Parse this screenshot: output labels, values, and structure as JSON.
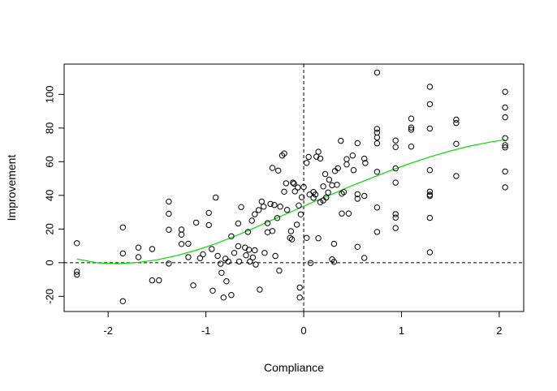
{
  "chart_data": {
    "type": "scatter",
    "xlabel": "Compliance",
    "ylabel": "Improvement",
    "xlim": [
      -2.45,
      2.25
    ],
    "ylim": [
      -29,
      118
    ],
    "x_ticks": [
      -2,
      -1,
      0,
      1,
      2
    ],
    "x_tick_labels": [
      "-2",
      "-1",
      "0",
      "1",
      "2"
    ],
    "y_ticks": [
      -20,
      0,
      20,
      40,
      60,
      80,
      100
    ],
    "y_tick_labels": [
      "-20",
      "0",
      "20",
      "40",
      "60",
      "80",
      "100"
    ],
    "reference_lines": {
      "vertical_x": 0,
      "horizontal_y": 0,
      "style": "dashed"
    },
    "grid": false,
    "colors": {
      "points": "#000000",
      "curve": "#00dd00",
      "reference": "#000000"
    },
    "points": [
      [
        -2.32,
        11.6
      ],
      [
        -2.32,
        -5.4
      ],
      [
        -2.32,
        -7.1
      ],
      [
        -1.85,
        21.0
      ],
      [
        -1.85,
        5.5
      ],
      [
        -1.85,
        -22.9
      ],
      [
        -1.69,
        9.0
      ],
      [
        -1.69,
        3.3
      ],
      [
        -1.55,
        8.1
      ],
      [
        -1.55,
        -10.5
      ],
      [
        -1.48,
        -10.5
      ],
      [
        -1.38,
        36.3
      ],
      [
        -1.38,
        29.1
      ],
      [
        -1.38,
        19.6
      ],
      [
        -1.38,
        -0.5
      ],
      [
        -1.25,
        19.7
      ],
      [
        -1.25,
        16.7
      ],
      [
        -1.25,
        11.1
      ],
      [
        -1.18,
        11.3
      ],
      [
        -1.18,
        3.3
      ],
      [
        -1.13,
        -13.5
      ],
      [
        -1.1,
        23.8
      ],
      [
        -1.06,
        2.7
      ],
      [
        -1.03,
        5.0
      ],
      [
        -0.97,
        29.6
      ],
      [
        -0.97,
        22.4
      ],
      [
        -0.94,
        8.1
      ],
      [
        -0.93,
        -16.6
      ],
      [
        -0.9,
        38.7
      ],
      [
        -0.88,
        4.0
      ],
      [
        -0.85,
        -0.6
      ],
      [
        -0.84,
        -6.0
      ],
      [
        -0.82,
        -20.7
      ],
      [
        -0.8,
        2.4
      ],
      [
        -0.79,
        -11.0
      ],
      [
        -0.77,
        0.7
      ],
      [
        -0.74,
        -19.2
      ],
      [
        -0.74,
        15.7
      ],
      [
        -0.71,
        5.8
      ],
      [
        -0.67,
        23.3
      ],
      [
        -0.67,
        9.8
      ],
      [
        -0.66,
        0.7
      ],
      [
        -0.64,
        33.1
      ],
      [
        -0.6,
        9.0
      ],
      [
        -0.59,
        4.4
      ],
      [
        -0.57,
        18.3
      ],
      [
        -0.56,
        7.7
      ],
      [
        -0.55,
        0.7
      ],
      [
        -0.53,
        25.0
      ],
      [
        -0.52,
        3.1
      ],
      [
        -0.5,
        28.8
      ],
      [
        -0.5,
        7.4
      ],
      [
        -0.49,
        -1.1
      ],
      [
        -0.46,
        31.3
      ],
      [
        -0.45,
        -16.0
      ],
      [
        -0.43,
        36.3
      ],
      [
        -0.41,
        33.3
      ],
      [
        -0.4,
        5.8
      ],
      [
        -0.37,
        23.5
      ],
      [
        -0.37,
        18.1
      ],
      [
        -0.34,
        34.9
      ],
      [
        -0.32,
        56.3
      ],
      [
        -0.32,
        18.8
      ],
      [
        -0.3,
        34.3
      ],
      [
        -0.29,
        4.0
      ],
      [
        -0.27,
        26.5
      ],
      [
        -0.26,
        54.7
      ],
      [
        -0.25,
        -4.7
      ],
      [
        -0.24,
        33.3
      ],
      [
        -0.22,
        63.7
      ],
      [
        -0.2,
        64.9
      ],
      [
        -0.2,
        42.2
      ],
      [
        -0.18,
        47.2
      ],
      [
        -0.17,
        31.4
      ],
      [
        -0.14,
        14.7
      ],
      [
        -0.13,
        18.7
      ],
      [
        -0.12,
        13.9
      ],
      [
        -0.11,
        47.6
      ],
      [
        -0.1,
        47.0
      ],
      [
        -0.09,
        42.4
      ],
      [
        -0.07,
        22.6
      ],
      [
        -0.06,
        44.7
      ],
      [
        -0.05,
        34.0
      ],
      [
        -0.04,
        -14.8
      ],
      [
        -0.04,
        -20.7
      ],
      [
        -0.03,
        28.7
      ],
      [
        -0.02,
        38.9
      ],
      [
        0.0,
        45.0
      ],
      [
        0.03,
        59.3
      ],
      [
        0.03,
        14.7
      ],
      [
        0.05,
        62.8
      ],
      [
        0.06,
        40.5
      ],
      [
        0.07,
        -0.2
      ],
      [
        0.1,
        42.0
      ],
      [
        0.1,
        38.5
      ],
      [
        0.12,
        40.5
      ],
      [
        0.13,
        63.0
      ],
      [
        0.15,
        65.9
      ],
      [
        0.15,
        14.5
      ],
      [
        0.17,
        35.9
      ],
      [
        0.17,
        61.9
      ],
      [
        0.2,
        37.0
      ],
      [
        0.2,
        45.3
      ],
      [
        0.22,
        52.7
      ],
      [
        0.23,
        38.7
      ],
      [
        0.25,
        41.7
      ],
      [
        0.26,
        49.3
      ],
      [
        0.29,
        2.0
      ],
      [
        0.29,
        46.0
      ],
      [
        0.31,
        0.5
      ],
      [
        0.31,
        11.2
      ],
      [
        0.32,
        54.5
      ],
      [
        0.34,
        46.3
      ],
      [
        0.35,
        56.1
      ],
      [
        0.38,
        72.4
      ],
      [
        0.39,
        41.0
      ],
      [
        0.39,
        29.2
      ],
      [
        0.41,
        42.0
      ],
      [
        0.44,
        61.5
      ],
      [
        0.44,
        58.4
      ],
      [
        0.46,
        29.2
      ],
      [
        0.5,
        63.7
      ],
      [
        0.51,
        55.0
      ],
      [
        0.55,
        71.0
      ],
      [
        0.55,
        40.7
      ],
      [
        0.55,
        38.0
      ],
      [
        0.55,
        9.4
      ],
      [
        0.62,
        61.8
      ],
      [
        0.62,
        39.7
      ],
      [
        0.62,
        2.8
      ],
      [
        0.63,
        59.2
      ],
      [
        0.75,
        113.0
      ],
      [
        0.75,
        79.5
      ],
      [
        0.75,
        77.3
      ],
      [
        0.75,
        74.4
      ],
      [
        0.75,
        70.9
      ],
      [
        0.75,
        54.0
      ],
      [
        0.75,
        32.8
      ],
      [
        0.75,
        18.3
      ],
      [
        0.94,
        72.6
      ],
      [
        0.94,
        68.7
      ],
      [
        0.94,
        56.0
      ],
      [
        0.94,
        47.6
      ],
      [
        0.94,
        28.9
      ],
      [
        0.94,
        26.8
      ],
      [
        0.94,
        20.6
      ],
      [
        1.1,
        85.6
      ],
      [
        1.1,
        80.3
      ],
      [
        1.1,
        79.0
      ],
      [
        1.1,
        69.0
      ],
      [
        1.29,
        104.5
      ],
      [
        1.29,
        94.2
      ],
      [
        1.29,
        79.7
      ],
      [
        1.29,
        55.0
      ],
      [
        1.29,
        42.2
      ],
      [
        1.29,
        40.4
      ],
      [
        1.29,
        39.7
      ],
      [
        1.29,
        26.6
      ],
      [
        1.29,
        6.2
      ],
      [
        1.56,
        85.0
      ],
      [
        1.56,
        83.0
      ],
      [
        1.56,
        70.6
      ],
      [
        1.56,
        51.5
      ],
      [
        2.06,
        101.5
      ],
      [
        2.06,
        92.2
      ],
      [
        2.06,
        86.4
      ],
      [
        2.06,
        74.0
      ],
      [
        2.06,
        69.8
      ],
      [
        2.06,
        68.5
      ],
      [
        2.06,
        54.2
      ],
      [
        2.06,
        44.8
      ]
    ],
    "fit_curve": [
      [
        -2.32,
        2.2
      ],
      [
        -2.1,
        -0.2
      ],
      [
        -1.9,
        -0.6
      ],
      [
        -1.7,
        0.1
      ],
      [
        -1.5,
        1.7
      ],
      [
        -1.3,
        4.2
      ],
      [
        -1.1,
        7.4
      ],
      [
        -0.9,
        11.3
      ],
      [
        -0.7,
        15.8
      ],
      [
        -0.5,
        20.8
      ],
      [
        -0.3,
        26.0
      ],
      [
        -0.1,
        31.0
      ],
      [
        0.1,
        36.1
      ],
      [
        0.3,
        41.0
      ],
      [
        0.5,
        45.9
      ],
      [
        0.7,
        50.5
      ],
      [
        0.9,
        55.0
      ],
      [
        1.1,
        59.2
      ],
      [
        1.3,
        63.0
      ],
      [
        1.5,
        66.4
      ],
      [
        1.7,
        69.3
      ],
      [
        1.9,
        71.6
      ],
      [
        2.06,
        73.1
      ]
    ]
  }
}
